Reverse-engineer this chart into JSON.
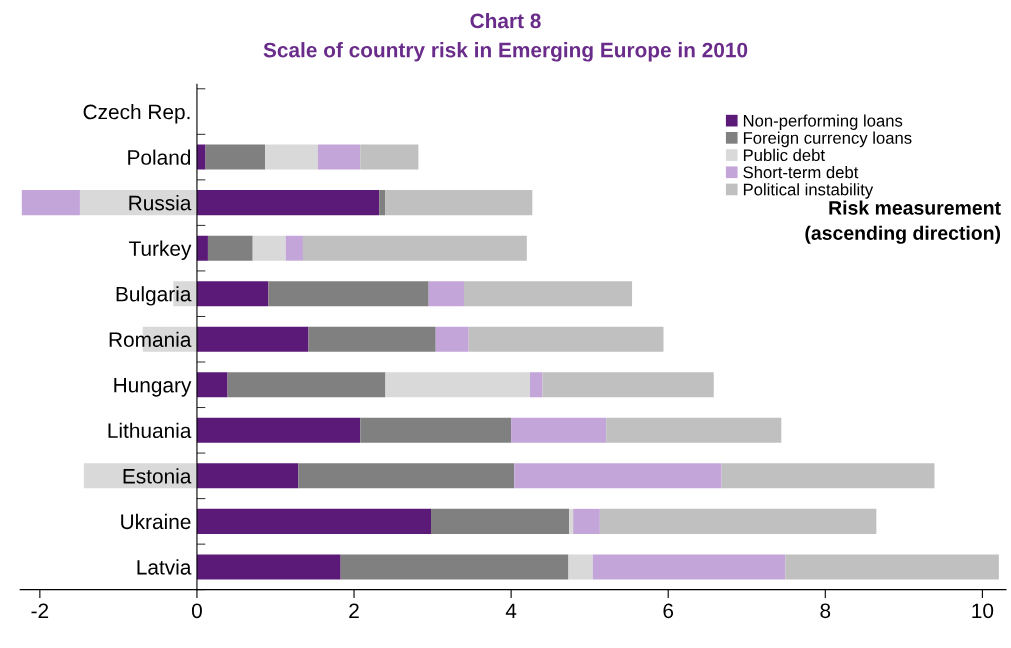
{
  "chart_data": {
    "type": "bar",
    "orientation": "horizontal",
    "stacked": true,
    "title": "Chart 8",
    "subtitle": "Scale of country risk in Emerging Europe in 2010",
    "categories": [
      "Czech Rep.",
      "Poland",
      "Russia",
      "Turkey",
      "Bulgaria",
      "Romania",
      "Hungary",
      "Lithuania",
      "Estonia",
      "Ukraine",
      "Latvia"
    ],
    "series": [
      {
        "name": "Non-performing loans",
        "color": "#5b1a78",
        "values": [
          null,
          0.11,
          2.32,
          0.14,
          0.91,
          1.42,
          0.39,
          2.08,
          1.29,
          2.98,
          1.83
        ]
      },
      {
        "name": "Foreign currency loans",
        "color": "#808080",
        "values": [
          null,
          0.76,
          0.08,
          0.57,
          2.04,
          1.62,
          2.01,
          1.92,
          2.75,
          1.76,
          2.9
        ]
      },
      {
        "name": "Public debt",
        "color": "#d9d9d9",
        "values": [
          null,
          0.67,
          -1.49,
          0.42,
          -0.3,
          -0.69,
          1.84,
          null,
          -1.44,
          0.05,
          0.31
        ]
      },
      {
        "name": "Short-term debt",
        "color": "#c3a5d9",
        "values": [
          null,
          0.54,
          -0.74,
          0.22,
          0.45,
          0.42,
          0.16,
          1.21,
          2.64,
          0.34,
          2.45
        ]
      },
      {
        "name": "Political instability",
        "color": "#c0c0c0",
        "values": [
          null,
          0.74,
          1.87,
          2.85,
          2.14,
          2.48,
          2.18,
          2.23,
          2.71,
          3.52,
          2.72
        ]
      }
    ],
    "xlim": [
      -2.25,
      10.3
    ],
    "xticks": [
      -2,
      0,
      2,
      4,
      6,
      8,
      10
    ],
    "legend": "top right",
    "annotations": [
      "Risk measurement\n(ascending direction)"
    ]
  }
}
